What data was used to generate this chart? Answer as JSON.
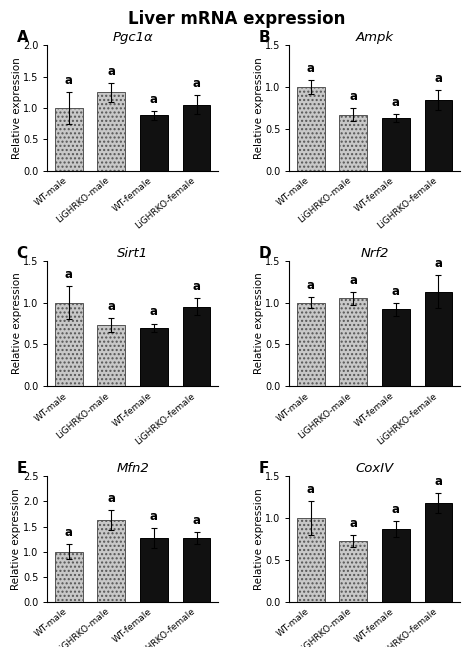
{
  "title": "Liver mRNA expression",
  "panels": [
    {
      "label": "A",
      "gene": "Pgc1α",
      "ylim": [
        0,
        2.0
      ],
      "yticks": [
        0.0,
        0.5,
        1.0,
        1.5,
        2.0
      ],
      "values": [
        1.0,
        1.25,
        0.88,
        1.05
      ],
      "errors": [
        0.25,
        0.15,
        0.07,
        0.15
      ],
      "sig_labels": [
        "a",
        "a",
        "a",
        "a"
      ]
    },
    {
      "label": "B",
      "gene": "Ampk",
      "ylim": [
        0,
        1.5
      ],
      "yticks": [
        0.0,
        0.5,
        1.0,
        1.5
      ],
      "values": [
        1.0,
        0.67,
        0.63,
        0.85
      ],
      "errors": [
        0.08,
        0.08,
        0.05,
        0.12
      ],
      "sig_labels": [
        "a",
        "a",
        "a",
        "a"
      ]
    },
    {
      "label": "C",
      "gene": "Sirt1",
      "ylim": [
        0,
        1.5
      ],
      "yticks": [
        0.0,
        0.5,
        1.0,
        1.5
      ],
      "values": [
        1.0,
        0.73,
        0.7,
        0.95
      ],
      "errors": [
        0.2,
        0.08,
        0.05,
        0.1
      ],
      "sig_labels": [
        "a",
        "a",
        "a",
        "a"
      ]
    },
    {
      "label": "D",
      "gene": "Nrf2",
      "ylim": [
        0,
        1.5
      ],
      "yticks": [
        0.0,
        0.5,
        1.0,
        1.5
      ],
      "values": [
        1.0,
        1.05,
        0.92,
        1.13
      ],
      "errors": [
        0.07,
        0.08,
        0.08,
        0.2
      ],
      "sig_labels": [
        "a",
        "a",
        "a",
        "a"
      ]
    },
    {
      "label": "E",
      "gene": "Mfn2",
      "ylim": [
        0,
        2.5
      ],
      "yticks": [
        0.0,
        0.5,
        1.0,
        1.5,
        2.0,
        2.5
      ],
      "values": [
        1.0,
        1.63,
        1.27,
        1.27
      ],
      "errors": [
        0.15,
        0.2,
        0.2,
        0.12
      ],
      "sig_labels": [
        "a",
        "a",
        "a",
        "a"
      ]
    },
    {
      "label": "F",
      "gene": "CoxIV",
      "ylim": [
        0,
        1.5
      ],
      "yticks": [
        0.0,
        0.5,
        1.0,
        1.5
      ],
      "values": [
        1.0,
        0.73,
        0.87,
        1.18
      ],
      "errors": [
        0.2,
        0.07,
        0.1,
        0.12
      ],
      "sig_labels": [
        "a",
        "a",
        "a",
        "a"
      ]
    }
  ],
  "categories": [
    "WT-male",
    "LiGHRKO-male",
    "WT-female",
    "LiGHRKO-female"
  ],
  "hatch_patterns": [
    "....",
    "....",
    "",
    ""
  ],
  "ylabel": "Relative expression",
  "xlabel_fontsize": 6.5,
  "ylabel_fontsize": 7.5,
  "title_fontsize": 12,
  "panel_label_fontsize": 11,
  "gene_fontsize": 9.5,
  "sig_fontsize": 8.5
}
